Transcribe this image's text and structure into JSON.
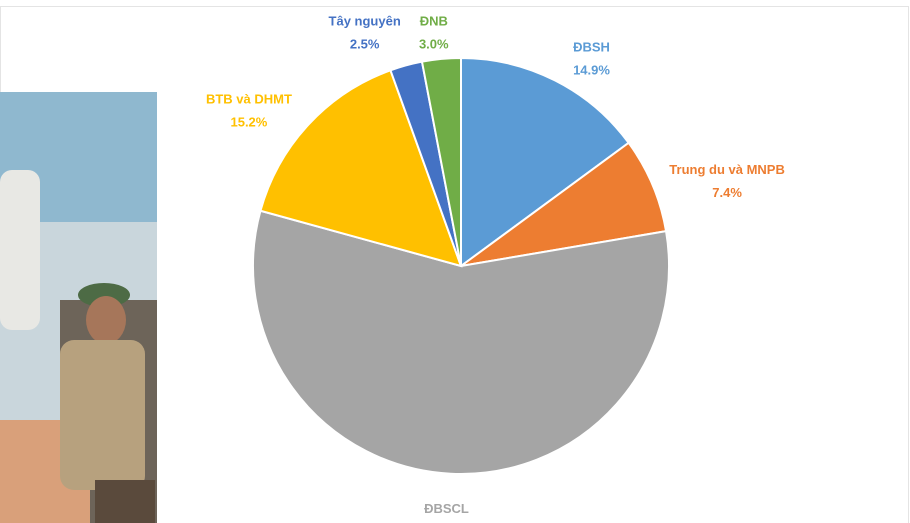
{
  "chart_data": {
    "type": "pie",
    "categories": [
      "ĐBSH",
      "Trung du và MNPB",
      "ĐBSCL",
      "BTB và DHMT",
      "Tây nguyên",
      "ĐNB"
    ],
    "values": [
      14.9,
      7.4,
      56.9,
      15.2,
      2.5,
      3.0
    ],
    "value_labels": [
      "14.9%",
      "7.4%",
      "56.9%",
      "15.2%",
      "2.5%",
      "3.0%"
    ],
    "colors": [
      "#5b9bd5",
      "#ed7d31",
      "#a5a5a5",
      "#ffc000",
      "#4472c4",
      "#70ad47"
    ]
  }
}
